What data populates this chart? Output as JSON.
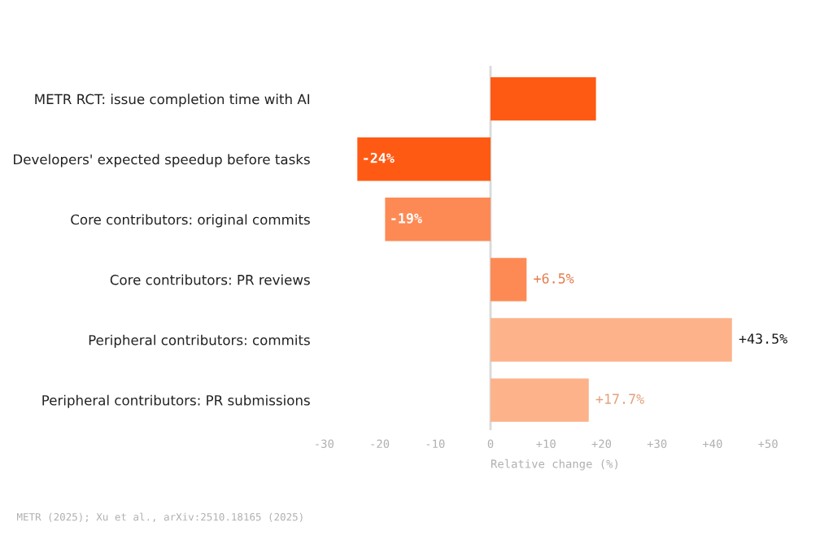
{
  "chart_data": {
    "type": "bar",
    "orientation": "horizontal",
    "categories": [
      "METR RCT: issue completion time with AI",
      "Developers' expected speedup before tasks",
      "Core contributors: original commits",
      "Core contributors: PR reviews",
      "Peripheral contributors: commits",
      "Peripheral contributors: PR submissions"
    ],
    "values": [
      19,
      -24,
      -19,
      6.5,
      43.5,
      17.7
    ],
    "value_labels": [
      null,
      "-24%",
      "-19%",
      "+6.5%",
      "+43.5%",
      "+17.7%"
    ],
    "colors": [
      "#ff5a14",
      "#ff5a14",
      "#fd8a55",
      "#fd8a55",
      "#fdb28a",
      "#fdb28a"
    ],
    "xlabel": "Relative change (%)",
    "xlim": [
      -30,
      50
    ],
    "xticks": [
      {
        "value": -30,
        "label": "-30"
      },
      {
        "value": -20,
        "label": "-20"
      },
      {
        "value": -10,
        "label": "-10"
      },
      0,
      {
        "value": 10,
        "label": "+10"
      },
      {
        "value": 20,
        "label": "+20"
      },
      {
        "value": 30,
        "label": "+30"
      },
      {
        "value": 40,
        "label": "+40"
      },
      {
        "value": 50,
        "label": "+50"
      }
    ],
    "ref_lines": [
      {
        "axis": "x",
        "value": 0,
        "color": "#d9d9d9"
      }
    ],
    "annotations": [
      "METR (2025); Xu et al., arXiv:2510.18165 (2025)"
    ],
    "grid": false,
    "legend": false
  }
}
